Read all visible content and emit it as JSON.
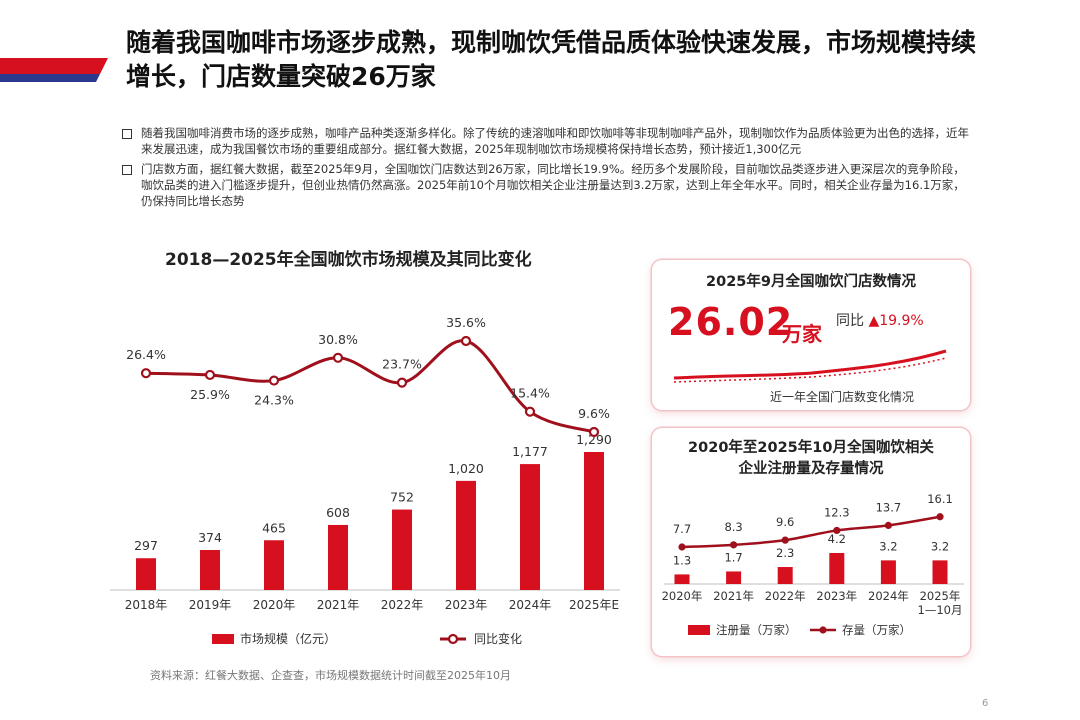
{
  "header": {
    "title": "随着我国咖啡市场逐步成熟，现制咖饮凭借品质体验快速发展，市场规模持续增长，门店数量突破26万家",
    "accent_color": "#d7101f",
    "stripe_colors": [
      "#d7101f",
      "#2a3a8c"
    ]
  },
  "bullets": [
    "随着我国咖啡消费市场的逐步成熟，咖啡产品种类逐渐多样化。除了传统的速溶咖啡和即饮咖啡等非现制咖啡产品外，现制咖饮作为品质体验更为出色的选择，近年来发展迅速，成为我国餐饮市场的重要组成部分。据红餐大数据，2025年现制咖饮市场规模将保持增长态势，预计接近1,300亿元",
    "门店数方面，据红餐大数据，截至2025年9月，全国咖饮门店数达到26万家，同比增长19.9%。经历多个发展阶段，目前咖饮品类逐步进入更深层次的竞争阶段，咖饮品类的进入门槛逐步提升，但创业热情仍然高涨。2025年前10个月咖饮相关企业注册量达到3.2万家，达到上年全年水平。同时，相关企业存量为16.1万家，仍保持同比增长态势"
  ],
  "chart_data": [
    {
      "type": "bar+line",
      "title": "2018—2025年全国咖饮市场规模及其同比变化",
      "categories": [
        "2018年",
        "2019年",
        "2020年",
        "2021年",
        "2022年",
        "2023年",
        "2024年",
        "2025年E"
      ],
      "series": [
        {
          "name": "市场规模（亿元）",
          "kind": "bar",
          "values": [
            297,
            374,
            465,
            608,
            752,
            1020,
            1177,
            1290
          ],
          "labels": [
            "297",
            "374",
            "465",
            "608",
            "752",
            "1,020",
            "1,177",
            "1,290"
          ]
        },
        {
          "name": "同比变化",
          "kind": "line",
          "values": [
            26.4,
            25.9,
            24.3,
            30.8,
            23.7,
            35.6,
            15.4,
            9.6
          ],
          "labels": [
            "26.4%",
            "25.9%",
            "24.3%",
            "30.8%",
            "23.7%",
            "35.6%",
            "15.4%",
            "9.6%"
          ]
        }
      ],
      "legend": [
        "市场规模（亿元）",
        "同比变化"
      ]
    },
    {
      "type": "kpi",
      "title": "2025年9月全国咖饮门店数情况",
      "value": "26.02",
      "unit": "万家",
      "yoy_label": "同比",
      "yoy_arrow": "▲",
      "yoy_value": "19.9%",
      "note": "近一年全国门店数变化情况"
    },
    {
      "type": "bar+line",
      "title": "2020年至2025年10月全国咖饮相关企业注册量及存量情况",
      "title_lines": [
        "2020年至2025年10月全国咖饮相关",
        "企业注册量及存量情况"
      ],
      "categories": [
        "2020年",
        "2021年",
        "2022年",
        "2023年",
        "2024年",
        "2025年"
      ],
      "category_sublabels": [
        "",
        "",
        "",
        "",
        "",
        "1—10月"
      ],
      "series": [
        {
          "name": "注册量（万家）",
          "kind": "bar",
          "values": [
            1.3,
            1.7,
            2.3,
            4.2,
            3.2,
            3.2
          ],
          "labels": [
            "1.3",
            "1.7",
            "2.3",
            "4.2",
            "3.2",
            "3.2"
          ]
        },
        {
          "name": "存量（万家）",
          "kind": "line",
          "values": [
            7.7,
            8.3,
            9.6,
            12.3,
            13.7,
            16.1
          ],
          "labels": [
            "7.7",
            "8.3",
            "9.6",
            "12.3",
            "13.7",
            "16.1"
          ]
        }
      ],
      "legend": [
        "注册量（万家）",
        "存量（万家）"
      ]
    }
  ],
  "footer": {
    "source": "资料来源：红餐大数据、企查查，市场规模数据统计时间截至2025年10月",
    "page": "6"
  }
}
